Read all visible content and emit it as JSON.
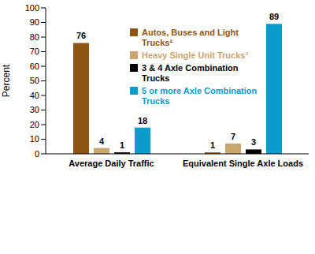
{
  "chart_data": {
    "type": "bar",
    "categories": [
      "Average Daily Traffic",
      "Equivalent Single Axle Loads"
    ],
    "series": [
      {
        "name": "Autos, Buses and Light Trucks²",
        "color": "#8f5514",
        "values": [
          76,
          1
        ]
      },
      {
        "name": "Heavy Single Unit Trucks³",
        "color": "#c9a56f",
        "values": [
          4,
          7
        ]
      },
      {
        "name": "3 & 4 Axle Combination Trucks",
        "color": "#000000",
        "values": [
          1,
          3
        ]
      },
      {
        "name": "5 or more Axle Combination Trucks",
        "color": "#0a9ccc",
        "values": [
          18,
          89
        ]
      }
    ],
    "y_label": "Percent",
    "ylim": [
      0,
      100
    ],
    "yticks": [
      0,
      10,
      20,
      30,
      40,
      50,
      60,
      70,
      80,
      90,
      100
    ],
    "grid": false,
    "legend": "top",
    "data_labels": true
  }
}
